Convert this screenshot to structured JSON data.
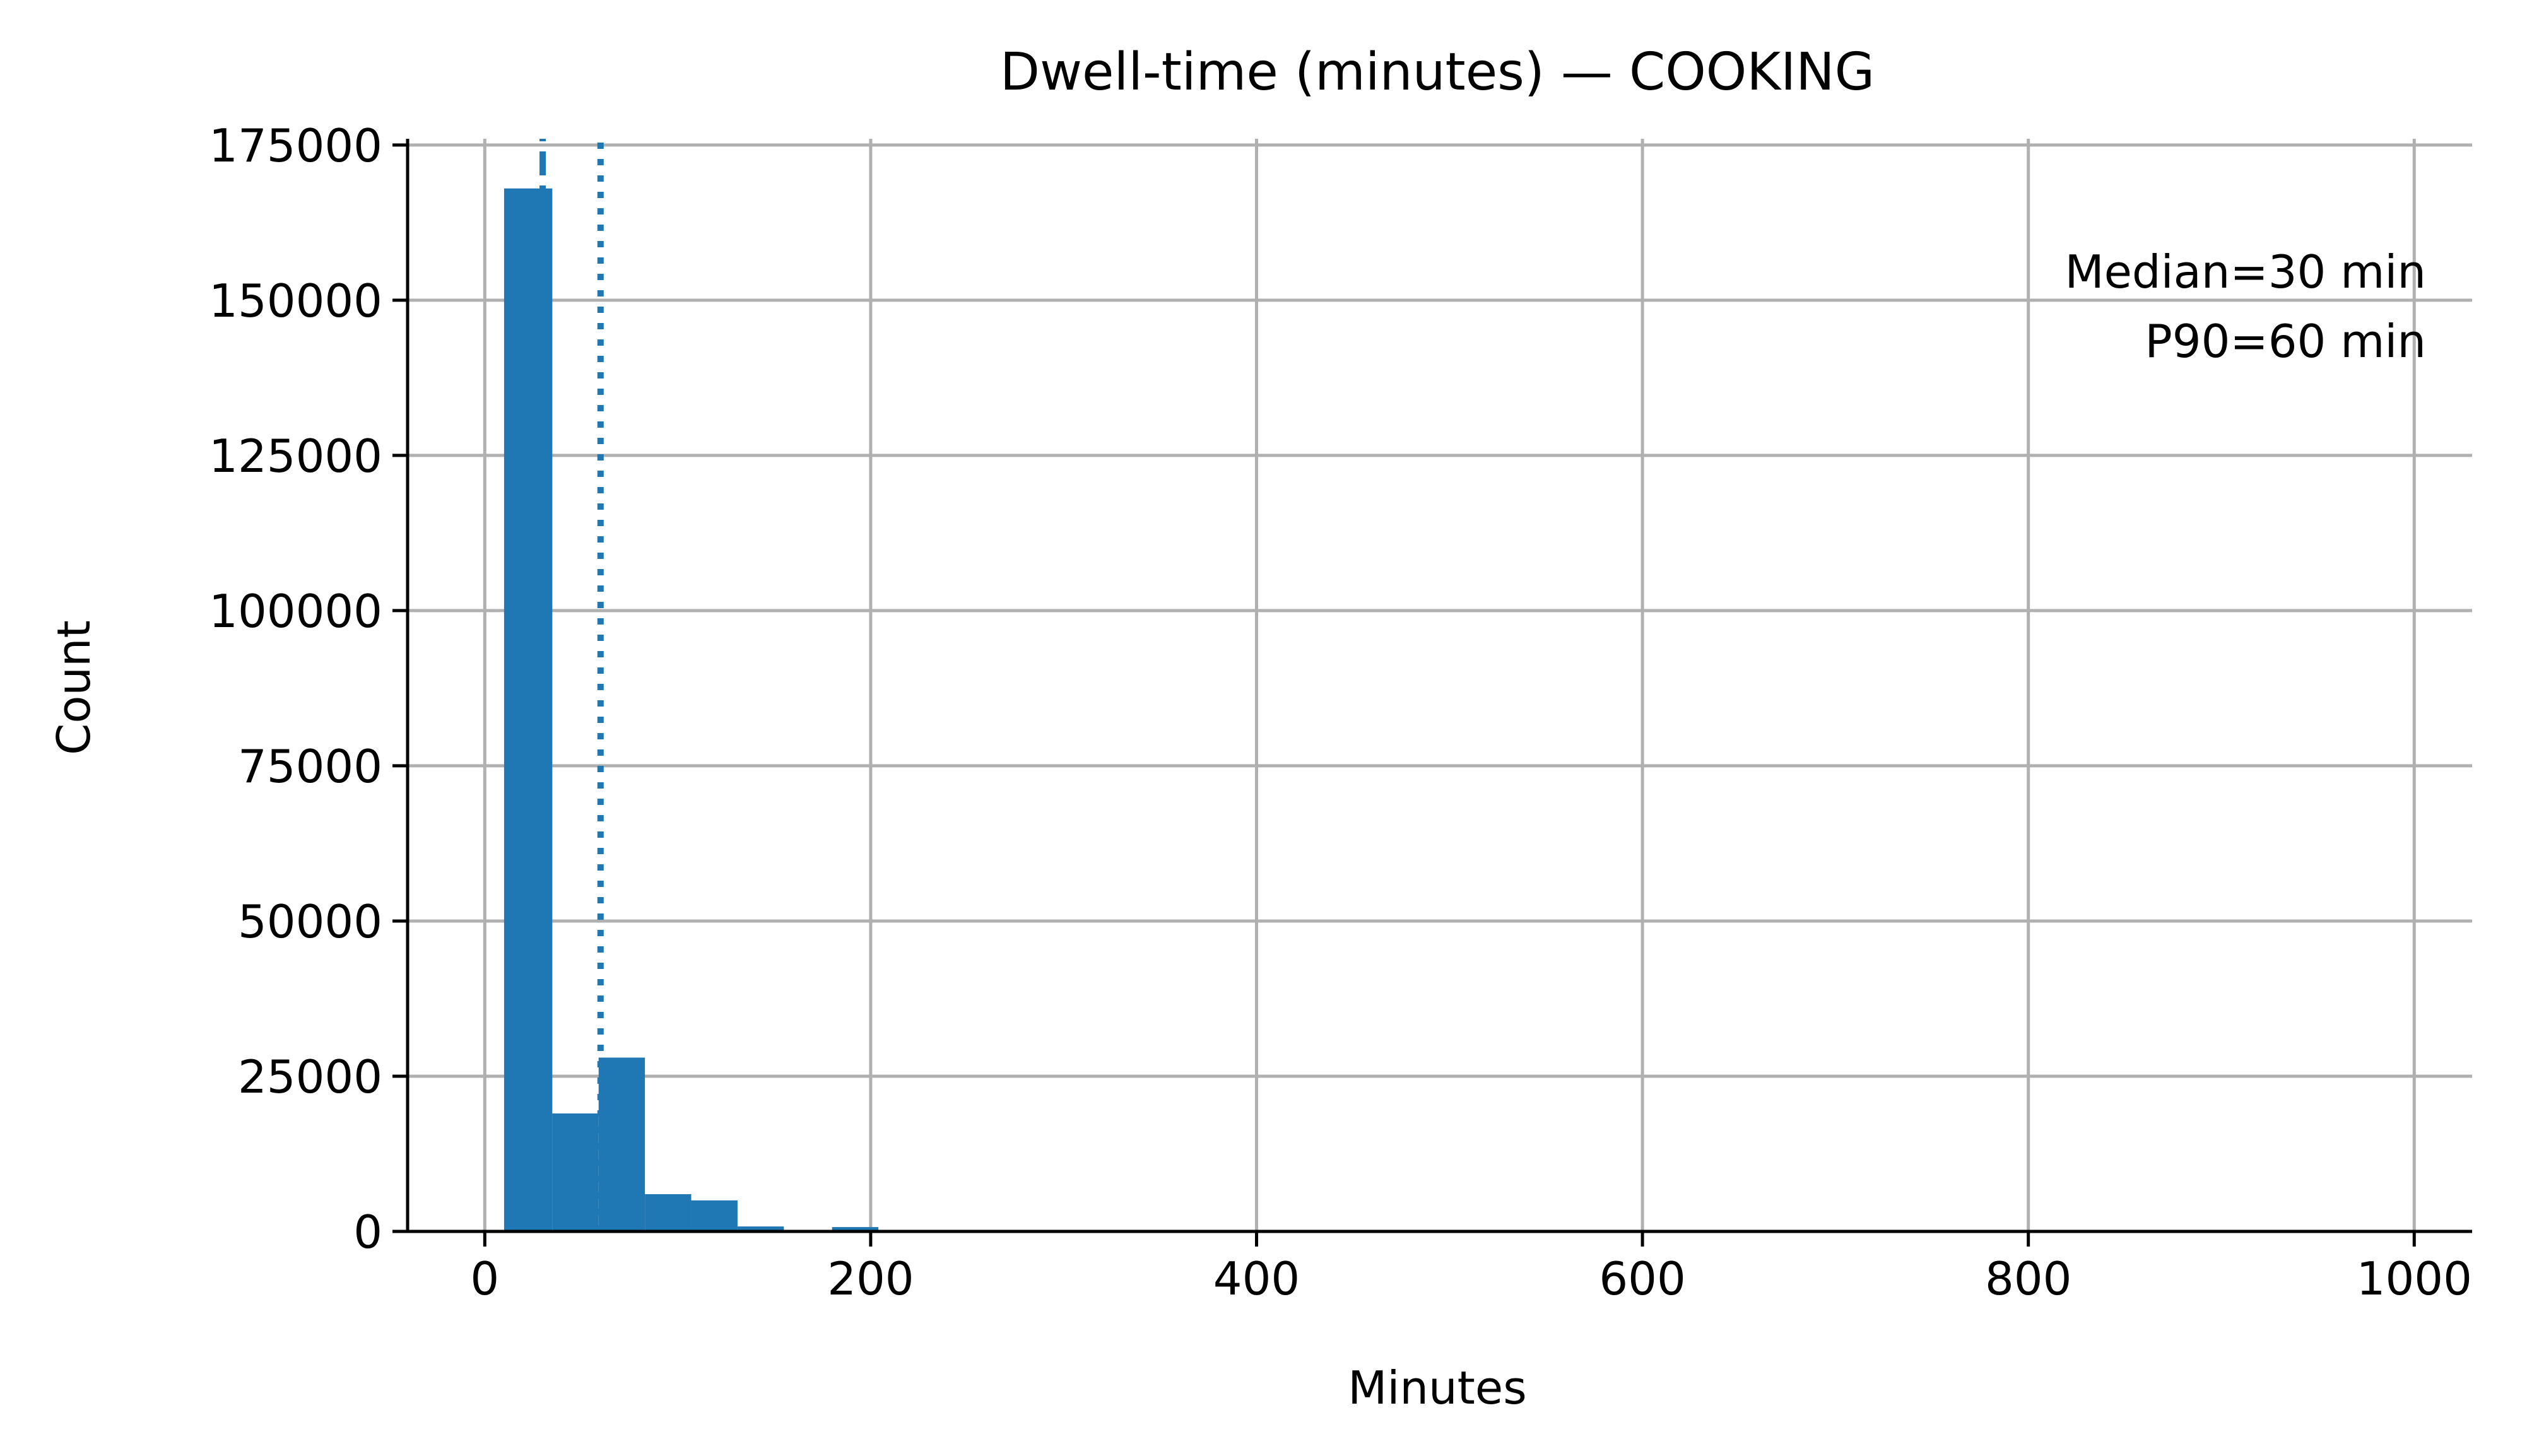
{
  "chart_data": {
    "type": "bar",
    "title": "Dwell-time (minutes) — COOKING",
    "xlabel": "Minutes",
    "ylabel": "Count",
    "xlim": [
      -40,
      1030
    ],
    "ylim": [
      0,
      176000
    ],
    "xticks": [
      0,
      200,
      400,
      600,
      800,
      1000
    ],
    "xtick_labels": [
      "0",
      "200",
      "400",
      "600",
      "800",
      "1000"
    ],
    "yticks": [
      0,
      25000,
      50000,
      75000,
      100000,
      125000,
      150000,
      175000
    ],
    "ytick_labels": [
      "0",
      "25000",
      "50000",
      "75000",
      "100000",
      "125000",
      "150000",
      "175000"
    ],
    "grid": true,
    "bars": [
      {
        "x0": 10,
        "x1": 35,
        "value": 168000
      },
      {
        "x0": 35,
        "x1": 59,
        "value": 19000
      },
      {
        "x0": 59,
        "x1": 83,
        "value": 28000
      },
      {
        "x0": 83,
        "x1": 107,
        "value": 6000
      },
      {
        "x0": 107,
        "x1": 131,
        "value": 5000
      },
      {
        "x0": 131,
        "x1": 155,
        "value": 800
      },
      {
        "x0": 155,
        "x1": 180,
        "value": 150
      },
      {
        "x0": 180,
        "x1": 204,
        "value": 700
      },
      {
        "x0": 204,
        "x1": 228,
        "value": 150
      }
    ],
    "reference_lines": [
      {
        "name": "median",
        "x": 30,
        "style": "dashed"
      },
      {
        "name": "p90",
        "x": 60,
        "style": "dotted"
      }
    ],
    "annotations": [
      "Median=30 min",
      "P90=60 min"
    ],
    "colors": {
      "bar": "#1f77b4",
      "grid": "#b0b0b0",
      "axis": "#000000"
    }
  }
}
